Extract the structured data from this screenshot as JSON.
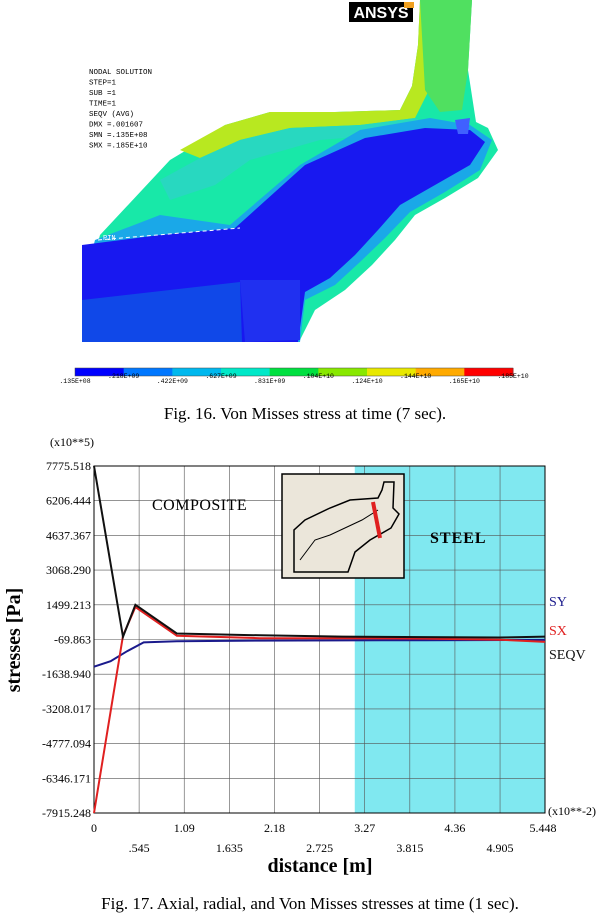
{
  "fig16": {
    "logo": "ANSYS",
    "info_lines": [
      "NODAL SOLUTION",
      "STEP=1",
      "SUB =1",
      "TIME=1",
      "SEQV    (AVG)",
      "DMX =.001607",
      "SMN =.135E+08",
      "SMX =.185E+10"
    ],
    "region_label": "PIN",
    "legend_labels": [
      ".135E+08",
      ".218E+09",
      ".422E+09",
      ".627E+09",
      ".831E+09",
      ".104E+10",
      ".124E+10",
      ".144E+10",
      ".165E+10",
      ".185E+10"
    ],
    "legend_colors": [
      "#0000ff",
      "#0077ff",
      "#00b8ee",
      "#00e8c8",
      "#00e040",
      "#88e800",
      "#e8e800",
      "#ffaa00",
      "#ff0000"
    ],
    "caption": "Fig. 16. Von Misses stress at time (7 sec)."
  },
  "fig17": {
    "caption": "Fig. 17. Axial, radial, and Von Misses stresses at time (1 sec).",
    "composite_label": "COMPOSITE",
    "steel_label": "STEEL",
    "steel_color": "#80e8f0"
  },
  "chart_data": {
    "type": "line",
    "title": "",
    "xlabel": "distance [m]",
    "ylabel": "stresses [Pa]",
    "y_multiplier": "(x10**5)",
    "x_multiplier": "(x10**-2)",
    "xlim": [
      0,
      5.448
    ],
    "ylim": [
      -7915.248,
      7775.518
    ],
    "grid": true,
    "legend_placement": "right",
    "x_ticks_bottom": [
      "0",
      ".545",
      "1.635",
      "2.725",
      "3.815",
      "4.905"
    ],
    "x_ticks_top": [
      "1.09",
      "2.18",
      "3.27",
      "4.36",
      "5.448"
    ],
    "x_tick_values_bottom": [
      0,
      0.545,
      1.635,
      2.725,
      3.815,
      4.905
    ],
    "x_tick_values_top": [
      1.09,
      2.18,
      3.27,
      4.36,
      5.448
    ],
    "y_ticks": [
      "7775.518",
      "6206.444",
      "4637.367",
      "3068.290",
      "1499.213",
      "-69.863",
      "-1638.940",
      "-3208.017",
      "-4777.094",
      "-6346.171",
      "-7915.248"
    ],
    "y_tick_values": [
      7775.518,
      6206.444,
      4637.367,
      3068.29,
      1499.213,
      -69.863,
      -1638.94,
      -3208.017,
      -4777.094,
      -6346.171,
      -7915.248
    ],
    "steel_region": [
      3.15,
      5.448
    ],
    "series": [
      {
        "name": "SY",
        "color": "#1a1a8c",
        "x": [
          0,
          0.2,
          0.4,
          0.6,
          1.0,
          2.0,
          3.0,
          4.0,
          5.448
        ],
        "y": [
          -1300,
          -1050,
          -600,
          -200,
          -150,
          -120,
          -110,
          -100,
          -90
        ]
      },
      {
        "name": "SX",
        "color": "#e02020",
        "x": [
          0,
          0.35,
          0.5,
          1.0,
          2.0,
          3.0,
          4.0,
          4.9,
          5.448
        ],
        "y": [
          -7915,
          100,
          1400,
          100,
          -10,
          -10,
          -30,
          -80,
          -180
        ]
      },
      {
        "name": "SEQV",
        "color": "#111111",
        "x": [
          0,
          0.35,
          0.5,
          1.0,
          2.0,
          3.0,
          4.0,
          4.9,
          5.448
        ],
        "y": [
          7775,
          50,
          1500,
          200,
          120,
          60,
          40,
          20,
          60
        ]
      }
    ]
  }
}
